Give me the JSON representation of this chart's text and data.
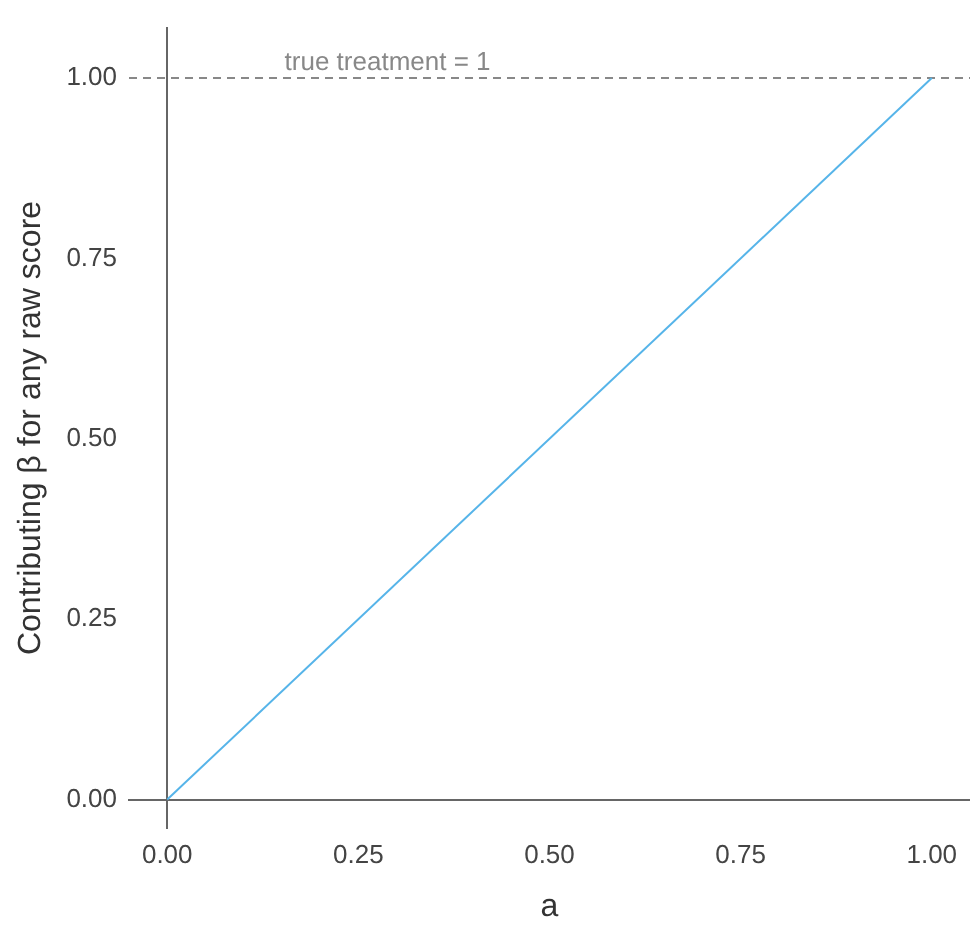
{
  "chart_data": {
    "type": "line",
    "xlabel": "a",
    "ylabel": "Contributing β for any raw score",
    "x": [
      0,
      1
    ],
    "series": [
      {
        "color": "#56b4e9",
        "values": [
          0,
          1
        ]
      }
    ],
    "xlim": [
      -0.05,
      1.05
    ],
    "ylim": [
      -0.04,
      1.07
    ],
    "xticks": [
      {
        "value": 0,
        "label": "0.00"
      },
      {
        "value": 0.25,
        "label": "0.25"
      },
      {
        "value": 0.5,
        "label": "0.50"
      },
      {
        "value": 0.75,
        "label": "0.75"
      },
      {
        "value": 1,
        "label": "1.00"
      }
    ],
    "yticks": [
      {
        "value": 0,
        "label": "0.00"
      },
      {
        "value": 0.25,
        "label": "0.25"
      },
      {
        "value": 0.5,
        "label": "0.50"
      },
      {
        "value": 0.75,
        "label": "0.75"
      },
      {
        "value": 1,
        "label": "1.00"
      }
    ],
    "ref_lines": [
      {
        "axis": "y",
        "value": 1,
        "label": "true treatment = 1",
        "color": "#888888",
        "line_style": "dashed"
      }
    ],
    "grid": false,
    "legend": false,
    "marker": "none",
    "line_style": "solid"
  }
}
